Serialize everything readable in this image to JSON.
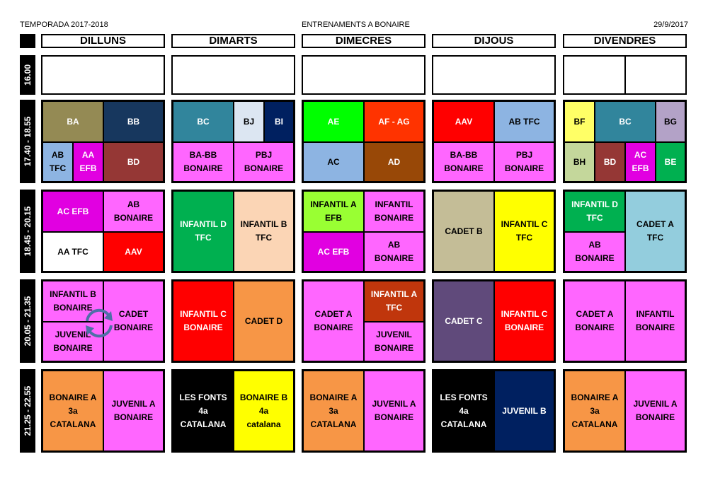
{
  "header": {
    "left": "TEMPORADA 2017-2018",
    "center": "ENTRENAMENTS A BONAIRE",
    "right": "29/9/2017"
  },
  "days": [
    "DILLUNS",
    "DIMARTS",
    "DIMECRES",
    "DIJOUS",
    "DIVENDRES"
  ],
  "times": [
    "16.00",
    "17.40 - 18.55",
    "18.45 - 20.15",
    "20.05 - 21.35",
    "21.25 - 22.55"
  ],
  "schedule": {
    "r1": {
      "dilluns": [
        {
          "text": "BA",
          "color": "#948A54"
        },
        {
          "text": "BB",
          "color": "#17375E"
        },
        {
          "text": "AB\nTFC",
          "color": "#8DB4E2"
        },
        {
          "text": "AA\nEFB",
          "color": "#E100E1"
        },
        {
          "text": "BD",
          "color": "#953735"
        }
      ],
      "dimarts": [
        {
          "text": "BC",
          "color": "#31859C"
        },
        {
          "text": "BJ",
          "color": "#DCE6F2"
        },
        {
          "text": "BI",
          "color": "#002060"
        },
        {
          "text": "BA-BB\nBONAIRE",
          "color": "#FF66FF"
        },
        {
          "text": "PBJ\nBONAIRE",
          "color": "#FF66FF"
        }
      ],
      "dimecres": [
        {
          "text": "AE",
          "color": "#00FF00"
        },
        {
          "text": "AF - AG",
          "color": "#FF3300"
        },
        {
          "text": "AC",
          "color": "#8DB4E2"
        },
        {
          "text": "AD",
          "color": "#984807"
        }
      ],
      "dijous": [
        {
          "text": "AAV",
          "color": "#FF0000"
        },
        {
          "text": "AB TFC",
          "color": "#8DB4E2"
        },
        {
          "text": "BA-BB\nBONAIRE",
          "color": "#FF66FF"
        },
        {
          "text": "PBJ\nBONAIRE",
          "color": "#FF66FF"
        }
      ],
      "divendres": [
        {
          "text": "BF",
          "color": "#FFFF66"
        },
        {
          "text": "BC",
          "color": "#31859C"
        },
        {
          "text": "BG",
          "color": "#B3A2C7"
        },
        {
          "text": "BH",
          "color": "#C4D79B"
        },
        {
          "text": "BD",
          "color": "#953735"
        },
        {
          "text": "AC\nEFB",
          "color": "#E100E1"
        },
        {
          "text": "BE",
          "color": "#00B050"
        }
      ]
    },
    "r2": {
      "dilluns": [
        {
          "text": "AC EFB",
          "color": "#E100E1"
        },
        {
          "text": "AB\nBONAIRE",
          "color": "#FF66FF"
        },
        {
          "text": "AA TFC",
          "color": "#FFFFFF"
        },
        {
          "text": "AAV",
          "color": "#FF0000"
        }
      ],
      "dimarts": [
        {
          "text": "INFANTIL D\nTFC",
          "color": "#00B050"
        },
        {
          "text": "INFANTIL B\nTFC",
          "color": "#FBD5B5"
        }
      ],
      "dimecres": [
        {
          "text": "INFANTIL A\nEFB",
          "color": "#99FF33"
        },
        {
          "text": "INFANTIL\nBONAIRE",
          "color": "#FF66FF"
        },
        {
          "text": "AC EFB",
          "color": "#E100E1"
        },
        {
          "text": "AB\nBONAIRE",
          "color": "#FF66FF"
        }
      ],
      "dijous": [
        {
          "text": "CADET B",
          "color": "#C4BD97"
        },
        {
          "text": "INFANTIL C\nTFC",
          "color": "#FFFF00"
        }
      ],
      "divendres": [
        {
          "text": "INFANTIL D\nTFC",
          "color": "#00B050"
        },
        {
          "text": "CADET A TFC",
          "color": "#93CDDD"
        },
        {
          "text": "AB\nBONAIRE",
          "color": "#FF66FF"
        }
      ]
    },
    "r3": {
      "dilluns": [
        {
          "text": "INFANTIL B\nBONAIRE",
          "color": "#FF66FF"
        },
        {
          "text": "CADET\nBONAIRE",
          "color": "#FF66FF"
        },
        {
          "text": "JUVENIL\nBONAIRE",
          "color": "#FF66FF"
        }
      ],
      "dimarts": [
        {
          "text": "INFANTIL C\nBONAIRE",
          "color": "#FF0000"
        },
        {
          "text": "CADET D",
          "color": "#F79646"
        }
      ],
      "dimecres": [
        {
          "text": "CADET A\nBONAIRE",
          "color": "#FF66FF"
        },
        {
          "text": "INFANTIL A\nTFC",
          "color": "#C0360C"
        },
        {
          "text": "JUVENIL\nBONAIRE",
          "color": "#FF66FF"
        }
      ],
      "dijous": [
        {
          "text": "CADET C",
          "color": "#604A7B"
        },
        {
          "text": "INFANTIL C\nBONAIRE",
          "color": "#FF0000"
        }
      ],
      "divendres": [
        {
          "text": "CADET A\nBONAIRE",
          "color": "#FF66FF"
        },
        {
          "text": "INFANTIL\nBONAIRE",
          "color": "#FF66FF"
        }
      ]
    },
    "r4": {
      "dilluns": [
        {
          "text": "BONAIRE A\n3a\nCATALANA",
          "color": "#F79646"
        },
        {
          "text": "JUVENIL A\nBONAIRE",
          "color": "#FF66FF"
        }
      ],
      "dimarts": [
        {
          "text": "LES FONTS\n4a\nCATALANA",
          "color": "#000000"
        },
        {
          "text": "BONAIRE B\n4a\ncatalana",
          "color": "#FFFF00"
        }
      ],
      "dimecres": [
        {
          "text": "BONAIRE A\n3a\nCATALANA",
          "color": "#F79646"
        },
        {
          "text": "JUVENIL A\nBONAIRE",
          "color": "#FF66FF"
        }
      ],
      "dijous": [
        {
          "text": "LES FONTS\n4a\nCATALANA",
          "color": "#000000"
        },
        {
          "text": "JUVENIL B",
          "color": "#002060"
        }
      ],
      "divendres": [
        {
          "text": "BONAIRE A\n3a\nCATALANA",
          "color": "#F79646"
        },
        {
          "text": "JUVENIL A\nBONAIRE",
          "color": "#FF66FF"
        }
      ]
    }
  }
}
